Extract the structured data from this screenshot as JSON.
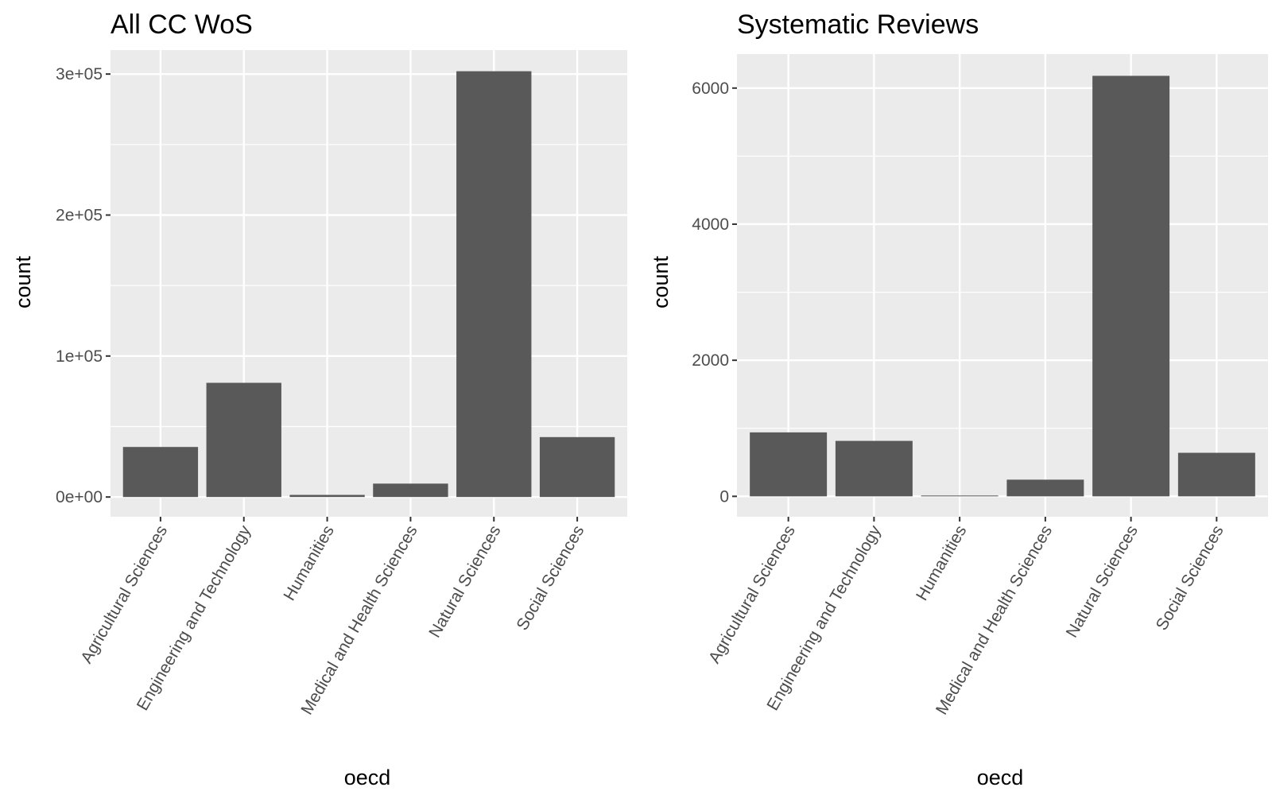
{
  "chart_data": [
    {
      "type": "bar",
      "title": "All CC WoS",
      "xlabel": "oecd",
      "ylabel": "count",
      "categories": [
        "Agricultural Sciences",
        "Engineering and Technology",
        "Humanities",
        "Medical and Health Sciences",
        "Natural Sciences",
        "Social Sciences"
      ],
      "values": [
        35500,
        81000,
        1500,
        9500,
        302000,
        42500
      ],
      "ylim": [
        -14000,
        317000
      ],
      "yticks": [
        0,
        100000,
        200000,
        300000
      ],
      "ytick_labels": [
        "0e+00",
        "1e+05",
        "2e+05",
        "3e+05"
      ],
      "grid": true,
      "bar_color": "#595959",
      "panel_color": "#ebebeb",
      "grid_color": "#ffffff"
    },
    {
      "type": "bar",
      "title": "Systematic Reviews",
      "xlabel": "oecd",
      "ylabel": "count",
      "categories": [
        "Agricultural Sciences",
        "Engineering and Technology",
        "Humanities",
        "Medical and Health Sciences",
        "Natural Sciences",
        "Social Sciences"
      ],
      "values": [
        940,
        815,
        12,
        245,
        6180,
        640
      ],
      "ylim": [
        -300,
        6500
      ],
      "yticks": [
        0,
        2000,
        4000,
        6000
      ],
      "ytick_labels": [
        "0",
        "2000",
        "4000",
        "6000"
      ],
      "grid": true,
      "bar_color": "#595959",
      "panel_color": "#ebebeb",
      "grid_color": "#ffffff"
    }
  ]
}
